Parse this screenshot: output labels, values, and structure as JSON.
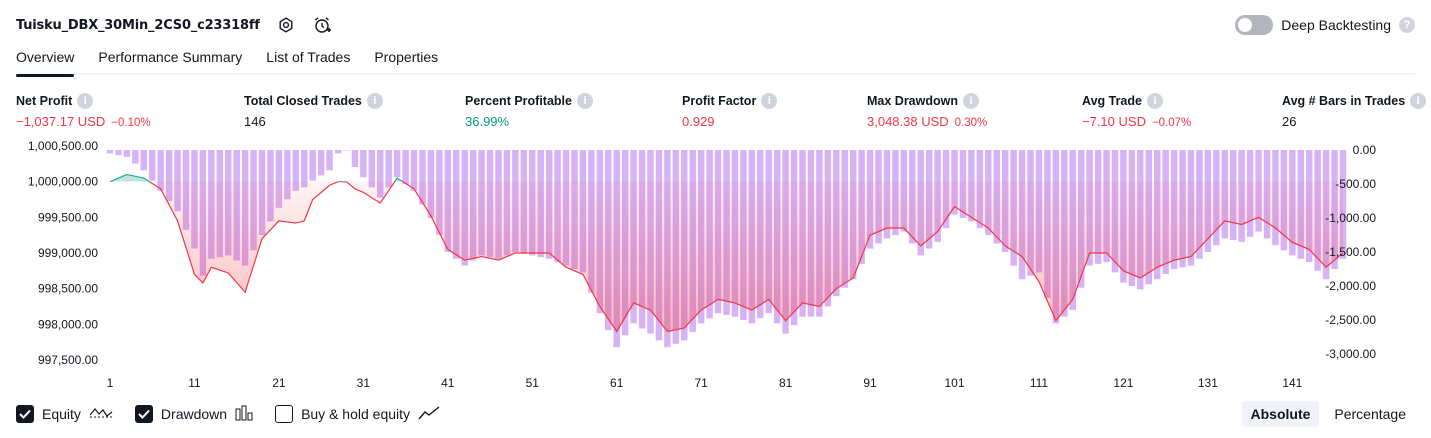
{
  "header": {
    "title": "Tuisku_DBX_30Min_2CS0_c23318ff",
    "deep_backtesting_label": "Deep Backtesting",
    "deep_backtesting_on": false
  },
  "tabs": [
    {
      "label": "Overview",
      "active": true
    },
    {
      "label": "Performance Summary",
      "active": false
    },
    {
      "label": "List of Trades",
      "active": false
    },
    {
      "label": "Properties",
      "active": false
    }
  ],
  "stats": [
    {
      "label": "Net Profit",
      "value": "−1,037.17 USD",
      "pct": "−0.10%",
      "color": "red"
    },
    {
      "label": "Total Closed Trades",
      "value": "146",
      "pct": "",
      "color": "default"
    },
    {
      "label": "Percent Profitable",
      "value": "36.99%",
      "pct": "",
      "color": "green"
    },
    {
      "label": "Profit Factor",
      "value": "0.929",
      "pct": "",
      "color": "red"
    },
    {
      "label": "Max Drawdown",
      "value": "3,048.38 USD",
      "pct": "0.30%",
      "color": "red"
    },
    {
      "label": "Avg Trade",
      "value": "−7.10 USD",
      "pct": "−0.07%",
      "color": "red"
    },
    {
      "label": "Avg # Bars in Trades",
      "value": "26",
      "pct": "",
      "color": "default"
    }
  ],
  "legend": {
    "equity_label": "Equity",
    "equity_checked": true,
    "drawdown_label": "Drawdown",
    "drawdown_checked": true,
    "buyhold_label": "Buy & hold equity",
    "buyhold_checked": false
  },
  "view_toggle": {
    "absolute_label": "Absolute",
    "percentage_label": "Percentage",
    "active": "Absolute"
  },
  "colors": {
    "equity_line": "#f23645",
    "equity_positive_line": "#22ab94",
    "drawdown_bar": "#d7b2f7",
    "text_red": "#f23645",
    "text_green": "#089981"
  },
  "chart_data": {
    "type": "line",
    "x_ticks": [
      "1",
      "11",
      "21",
      "31",
      "41",
      "51",
      "61",
      "71",
      "81",
      "91",
      "101",
      "111",
      "121",
      "131",
      "141"
    ],
    "y_left_ticks": [
      "1,000,500.00",
      "1,000,000.00",
      "999,500.00",
      "999,000.00",
      "998,500.00",
      "998,000.00",
      "997,500.00"
    ],
    "y_left_range": [
      997500,
      1000500
    ],
    "y_right_ticks": [
      "0.00",
      "-500.00",
      "-1,000.00",
      "-1,500.00",
      "-2,000.00",
      "-2,500.00",
      "-3,000.00"
    ],
    "y_right_range": [
      -3000,
      0
    ],
    "x_range": [
      1,
      147
    ],
    "baseline": 1000000,
    "series": [
      {
        "name": "Equity",
        "x": [
          1,
          3,
          5,
          7,
          9,
          11,
          12,
          13,
          15,
          17,
          19,
          21,
          23,
          24,
          25,
          27,
          28,
          29,
          30,
          31,
          33,
          35,
          37,
          39,
          41,
          43,
          45,
          47,
          49,
          51,
          53,
          55,
          57,
          59,
          61,
          63,
          65,
          67,
          69,
          71,
          73,
          75,
          77,
          79,
          81,
          83,
          85,
          87,
          89,
          91,
          93,
          95,
          97,
          99,
          101,
          103,
          105,
          107,
          109,
          111,
          113,
          115,
          117,
          119,
          121,
          123,
          125,
          127,
          129,
          131,
          133,
          135,
          137,
          139,
          141,
          143,
          145,
          147
        ],
        "y": [
          1000000,
          1000100,
          1000050,
          999900,
          999450,
          998700,
          998580,
          998800,
          998720,
          998450,
          999200,
          999450,
          999420,
          999450,
          999750,
          999950,
          1000000,
          1000000,
          999900,
          999850,
          999700,
          1000050,
          999900,
          999520,
          999050,
          998900,
          998950,
          998900,
          999000,
          999000,
          999000,
          998800,
          998700,
          998250,
          997900,
          998300,
          998200,
          997900,
          997950,
          998200,
          998350,
          998300,
          998200,
          998350,
          998050,
          998300,
          998250,
          998500,
          998650,
          999250,
          999350,
          999350,
          999100,
          999300,
          999650,
          999500,
          999350,
          999100,
          998950,
          998600,
          998050,
          998350,
          999000,
          999000,
          998750,
          998650,
          998800,
          998900,
          998950,
          999200,
          999450,
          999400,
          999500,
          999350,
          999150,
          999050,
          998800,
          999000
        ]
      },
      {
        "name": "Drawdown",
        "x": [
          1,
          3,
          5,
          7,
          9,
          11,
          12,
          13,
          15,
          17,
          19,
          21,
          23,
          24,
          25,
          27,
          28,
          29,
          30,
          31,
          33,
          35,
          37,
          39,
          41,
          43,
          45,
          47,
          49,
          51,
          53,
          55,
          57,
          59,
          61,
          63,
          65,
          67,
          69,
          71,
          73,
          75,
          77,
          79,
          81,
          83,
          85,
          87,
          89,
          91,
          93,
          95,
          97,
          99,
          101,
          103,
          105,
          107,
          109,
          111,
          113,
          115,
          117,
          119,
          121,
          123,
          125,
          127,
          129,
          131,
          133,
          135,
          137,
          139,
          141,
          143,
          145,
          147
        ],
        "y": [
          -50,
          -100,
          -300,
          -600,
          -900,
          -1450,
          -1850,
          -1600,
          -1550,
          -1700,
          -1250,
          -850,
          -600,
          -550,
          -450,
          -300,
          -50,
          0,
          -250,
          -400,
          -700,
          -400,
          -600,
          -1000,
          -1500,
          -1700,
          -1550,
          -1600,
          -1500,
          -1550,
          -1600,
          -1700,
          -1800,
          -2400,
          -2900,
          -2550,
          -2700,
          -2900,
          -2800,
          -2550,
          -2400,
          -2450,
          -2550,
          -2400,
          -2700,
          -2450,
          -2450,
          -2150,
          -1900,
          -1450,
          -1300,
          -1200,
          -1550,
          -1350,
          -950,
          -1050,
          -1250,
          -1500,
          -1900,
          -1800,
          -2550,
          -2350,
          -1700,
          -1650,
          -1950,
          -2050,
          -1900,
          -1750,
          -1700,
          -1500,
          -1300,
          -1350,
          -1200,
          -1400,
          -1550,
          -1650,
          -1900,
          -1600
        ]
      }
    ],
    "legend": [
      "Equity",
      "Drawdown",
      "Buy & hold equity"
    ]
  }
}
